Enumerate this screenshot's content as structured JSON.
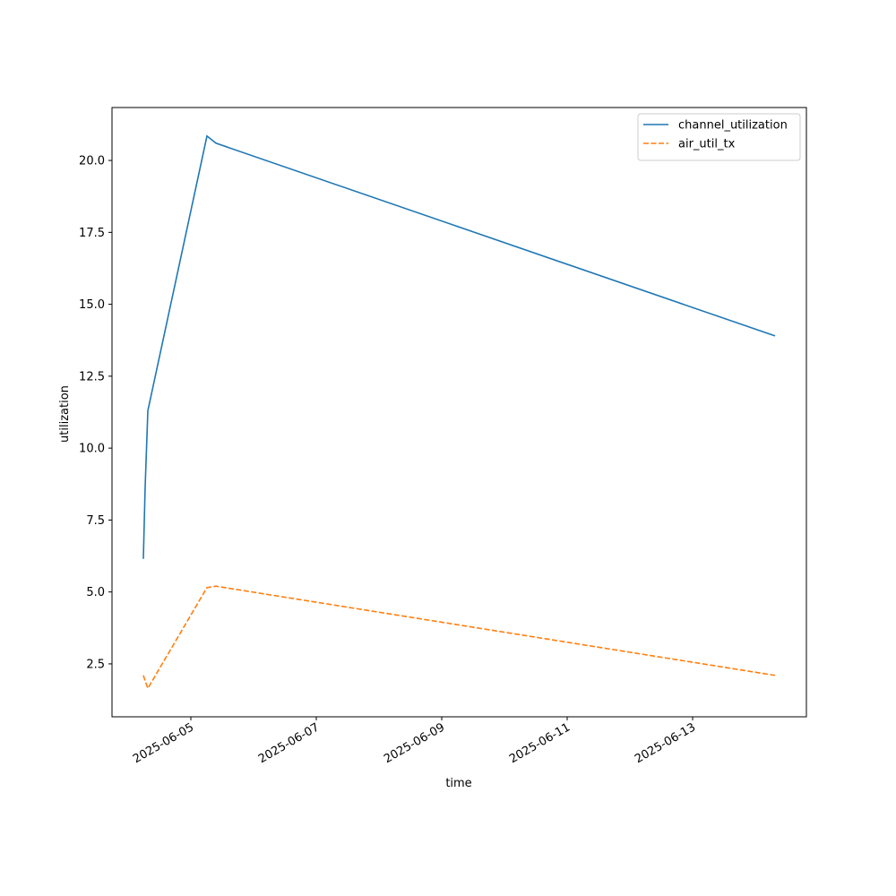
{
  "chart_data": {
    "type": "line",
    "x_label": "time",
    "y_label": "utilization",
    "x": [
      "2025-06-04 05:50",
      "2025-06-04 06:30",
      "2025-06-04 07:33",
      "2025-06-05 06:10",
      "2025-06-05 09:36",
      "2025-06-14 07:32"
    ],
    "series": [
      {
        "name": "channel_utilization",
        "color": "#1f77b4",
        "dash": "solid",
        "values": [
          6.15,
          8.6,
          11.3,
          20.85,
          20.6,
          13.9
        ]
      },
      {
        "name": "air_util_tx",
        "color": "#ff7f0e",
        "dash": "dashed",
        "values": [
          2.1,
          1.92,
          1.65,
          5.15,
          5.2,
          2.1
        ]
      }
    ],
    "xlim": [
      "2025-06-03 17:50",
      "2025-06-14 19:32"
    ],
    "xticks": [
      "2025-06-05",
      "2025-06-07",
      "2025-06-09",
      "2025-06-11",
      "2025-06-13"
    ],
    "ylim": [
      0.66,
      21.84
    ],
    "yticks": [
      {
        "value": 2.5,
        "label": "2.5"
      },
      {
        "value": 5,
        "label": "5.0"
      },
      {
        "value": 7.5,
        "label": "7.5"
      },
      {
        "value": 10,
        "label": "10.0"
      },
      {
        "value": 12.5,
        "label": "12.5"
      },
      {
        "value": 15,
        "label": "15.0"
      },
      {
        "value": 17.5,
        "label": "17.5"
      },
      {
        "value": 20,
        "label": "20.0"
      }
    ],
    "grid": false,
    "legend": "upper right"
  }
}
